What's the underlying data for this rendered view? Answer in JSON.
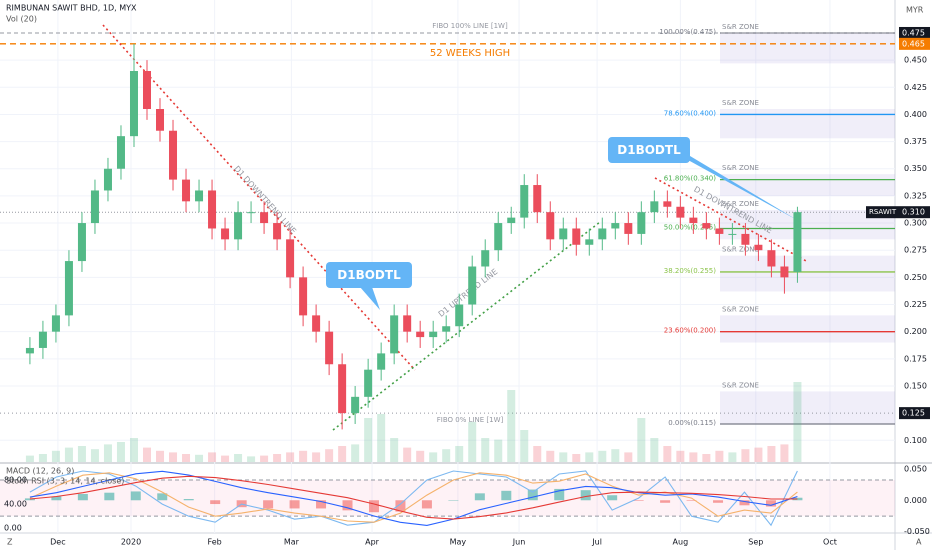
{
  "ui": {
    "scale_left": "Z",
    "scale_right": "A"
  },
  "chart_data": {
    "type": "candlestick",
    "title": "RIMBUNAN SAWIT BHD, 1D, MYX",
    "currency": "MYR",
    "volume_label": "Vol (20)",
    "colors": {
      "up": "#53b987",
      "down": "#eb4d5c"
    },
    "grid": true,
    "xlim": [
      -2.3,
      66.5
    ],
    "ylim": [
      0.08,
      0.498
    ],
    "xticks": [
      {
        "value": 2.15,
        "label": "Dec"
      },
      {
        "value": 7.77,
        "label": "2020"
      },
      {
        "value": 14.2,
        "label": "Feb"
      },
      {
        "value": 20.1,
        "label": "Mar"
      },
      {
        "value": 26.3,
        "label": "Apr"
      },
      {
        "value": 32.9,
        "label": "May"
      },
      {
        "value": 37.6,
        "label": "Jun"
      },
      {
        "value": 43.6,
        "label": "Jul"
      },
      {
        "value": 50,
        "label": "Aug"
      },
      {
        "value": 55.8,
        "label": "Sep"
      },
      {
        "value": 61.5,
        "label": "Oct"
      }
    ],
    "yticks": [
      {
        "value": 0.1,
        "label": "0.100"
      },
      {
        "value": 0.15,
        "label": "0.150"
      },
      {
        "value": 0.175,
        "label": "0.175"
      },
      {
        "value": 0.2,
        "label": "0.200"
      },
      {
        "value": 0.225,
        "label": "0.225"
      },
      {
        "value": 0.25,
        "label": "0.250"
      },
      {
        "value": 0.275,
        "label": "0.275"
      },
      {
        "value": 0.3,
        "label": "0.300"
      },
      {
        "value": 0.325,
        "label": "0.325"
      },
      {
        "value": 0.35,
        "label": "0.350"
      },
      {
        "value": 0.375,
        "label": "0.375"
      },
      {
        "value": 0.4,
        "label": "0.400"
      },
      {
        "value": 0.425,
        "label": "0.425"
      },
      {
        "value": 0.45,
        "label": "0.450"
      }
    ],
    "open": [
      0.18,
      0.185,
      0.2,
      0.215,
      0.265,
      0.3,
      0.33,
      0.35,
      0.38,
      0.44,
      0.405,
      0.385,
      0.34,
      0.32,
      0.33,
      0.295,
      0.285,
      0.31,
      0.31,
      0.3,
      0.285,
      0.25,
      0.215,
      0.2,
      0.17,
      0.125,
      0.14,
      0.165,
      0.18,
      0.215,
      0.2,
      0.195,
      0.2,
      0.205,
      0.225,
      0.26,
      0.275,
      0.3,
      0.305,
      0.335,
      0.31,
      0.285,
      0.295,
      0.28,
      0.285,
      0.295,
      0.3,
      0.29,
      0.31,
      0.32,
      0.315,
      0.305,
      0.3,
      0.295,
      0.29,
      0.29,
      0.28,
      0.275,
      0.26,
      0.255
    ],
    "high": [
      0.195,
      0.21,
      0.225,
      0.275,
      0.31,
      0.34,
      0.36,
      0.39,
      0.465,
      0.45,
      0.415,
      0.395,
      0.35,
      0.34,
      0.34,
      0.305,
      0.32,
      0.32,
      0.32,
      0.31,
      0.295,
      0.26,
      0.225,
      0.21,
      0.18,
      0.15,
      0.175,
      0.19,
      0.225,
      0.225,
      0.21,
      0.21,
      0.215,
      0.235,
      0.27,
      0.285,
      0.31,
      0.315,
      0.345,
      0.345,
      0.32,
      0.305,
      0.305,
      0.295,
      0.305,
      0.31,
      0.31,
      0.32,
      0.33,
      0.33,
      0.325,
      0.315,
      0.31,
      0.305,
      0.3,
      0.3,
      0.29,
      0.285,
      0.27,
      0.315
    ],
    "low": [
      0.17,
      0.175,
      0.19,
      0.205,
      0.255,
      0.29,
      0.32,
      0.34,
      0.37,
      0.395,
      0.375,
      0.33,
      0.31,
      0.31,
      0.285,
      0.275,
      0.275,
      0.3,
      0.29,
      0.275,
      0.24,
      0.205,
      0.19,
      0.16,
      0.11,
      0.115,
      0.13,
      0.155,
      0.17,
      0.19,
      0.185,
      0.185,
      0.19,
      0.195,
      0.215,
      0.25,
      0.265,
      0.29,
      0.295,
      0.3,
      0.275,
      0.275,
      0.27,
      0.27,
      0.275,
      0.285,
      0.28,
      0.28,
      0.3,
      0.305,
      0.295,
      0.29,
      0.285,
      0.28,
      0.28,
      0.27,
      0.265,
      0.25,
      0.235,
      0.245
    ],
    "close": [
      0.185,
      0.2,
      0.215,
      0.265,
      0.3,
      0.33,
      0.35,
      0.38,
      0.44,
      0.405,
      0.385,
      0.34,
      0.32,
      0.33,
      0.295,
      0.285,
      0.31,
      0.31,
      0.3,
      0.285,
      0.25,
      0.215,
      0.2,
      0.17,
      0.125,
      0.14,
      0.165,
      0.18,
      0.215,
      0.2,
      0.195,
      0.2,
      0.205,
      0.225,
      0.26,
      0.275,
      0.3,
      0.305,
      0.335,
      0.31,
      0.285,
      0.295,
      0.28,
      0.285,
      0.295,
      0.3,
      0.29,
      0.31,
      0.32,
      0.315,
      0.305,
      0.3,
      0.295,
      0.29,
      0.29,
      0.28,
      0.275,
      0.26,
      0.25,
      0.31
    ],
    "volume": [
      8,
      10,
      14,
      18,
      20,
      16,
      22,
      25,
      30,
      18,
      14,
      12,
      10,
      9,
      12,
      8,
      10,
      7,
      8,
      10,
      12,
      14,
      12,
      16,
      20,
      22,
      55,
      60,
      30,
      18,
      14,
      12,
      16,
      20,
      50,
      30,
      28,
      90,
      40,
      20,
      14,
      12,
      10,
      12,
      14,
      16,
      12,
      55,
      30,
      20,
      14,
      12,
      10,
      14,
      12,
      16,
      18,
      20,
      22,
      100
    ],
    "levels": [
      {
        "name": "FIBO 100% LINE [1W]",
        "value": 0.475,
        "label": "0.475",
        "color": "#9598a1"
      },
      {
        "name": "52 WEEKS HIGH",
        "value": 0.465,
        "label": "0.465",
        "color": "#f57c00"
      },
      {
        "name": "FIBO 0% LINE [1W]",
        "value": 0.125,
        "label": "0.125",
        "color": "#9598a1"
      }
    ],
    "last_price": {
      "symbol": "RSAWIT",
      "value": 0.31,
      "label": "0.310"
    },
    "fib": [
      {
        "label": "100.00%(0.475)",
        "value": 0.475,
        "color": "#787b86"
      },
      {
        "label": "78.60%(0.400)",
        "value": 0.4,
        "color": "#2196f3"
      },
      {
        "label": "61.80%(0.340)",
        "value": 0.34,
        "color": "#4caf50"
      },
      {
        "label": "50.00%(0.295)",
        "value": 0.295,
        "color": "#4caf50"
      },
      {
        "label": "38.20%(0.255)",
        "value": 0.255,
        "color": "#8bc34a"
      },
      {
        "label": "23.60%(0.200)",
        "value": 0.2,
        "color": "#e53935"
      },
      {
        "label": "0.00%(0.115)",
        "value": 0.115,
        "color": "#787b86"
      }
    ],
    "zones": [
      {
        "label": "S&R ZONE",
        "range": [
          0.447,
          0.475
        ]
      },
      {
        "label": "S&R ZONE",
        "range": [
          0.378,
          0.405
        ]
      },
      {
        "label": "S&R ZONE",
        "range": [
          0.325,
          0.345
        ]
      },
      {
        "label": "S&R ZONE",
        "range": [
          0.285,
          0.312
        ]
      },
      {
        "label": "S&R ZONE",
        "range": [
          0.237,
          0.27
        ]
      },
      {
        "label": "S&R ZONE",
        "range": [
          0.19,
          0.215
        ]
      },
      {
        "label": "S&R ZONE",
        "range": [
          0.115,
          0.145
        ]
      }
    ],
    "annotations": [
      "D1 DOWNTREND LINE",
      "D1 UPTREND LINE",
      "D1 DOWNTREND LINE",
      "D1BODTL",
      "D1BODTL"
    ],
    "indicators": {
      "macd": {
        "label": "MACD (12, 26, 9)",
        "ylim": [
          -0.052,
          0.056
        ],
        "yticks": [
          {
            "value": 0.05,
            "label": "0.050"
          },
          {
            "value": 0,
            "label": "0.000"
          },
          {
            "value": -0.05,
            "label": "-0.050"
          }
        ],
        "macd": [
          0.005,
          0.012,
          0.022,
          0.032,
          0.042,
          0.046,
          0.04,
          0.03,
          0.02,
          0.012,
          0.005,
          -0.002,
          -0.012,
          -0.025,
          -0.035,
          -0.04,
          -0.03,
          -0.015,
          -0.005,
          0.005,
          0.015,
          0.022,
          0.02,
          0.012,
          0.008,
          0.01,
          0.005,
          -0.002,
          -0.008,
          0.006
        ],
        "signal": [
          0.002,
          0.006,
          0.012,
          0.02,
          0.028,
          0.035,
          0.038,
          0.036,
          0.031,
          0.025,
          0.018,
          0.011,
          0.004,
          -0.006,
          -0.017,
          -0.027,
          -0.03,
          -0.026,
          -0.02,
          -0.012,
          -0.003,
          0.006,
          0.012,
          0.013,
          0.012,
          0.011,
          0.009,
          0.006,
          0.002,
          0.002
        ],
        "histogram": [
          0.003,
          0.006,
          0.01,
          0.012,
          0.014,
          0.011,
          0.002,
          -0.006,
          -0.011,
          -0.013,
          -0.013,
          -0.013,
          -0.016,
          -0.019,
          -0.018,
          -0.013,
          0.0,
          0.011,
          0.015,
          0.017,
          0.018,
          0.016,
          0.008,
          -0.001,
          -0.004,
          -0.001,
          -0.004,
          -0.008,
          -0.01,
          0.004
        ]
      },
      "stoch_rsi": {
        "label": "Stoch RSI (3, 3, 14, 14, close)",
        "ylim": [
          -8,
          105
        ],
        "yticks": [
          {
            "value": 80,
            "label": "80.00"
          },
          {
            "value": 40,
            "label": "40.00"
          },
          {
            "value": 0,
            "label": "0.00"
          }
        ],
        "bands": [
          80,
          20
        ],
        "k": [
          60,
          85,
          95,
          90,
          70,
          40,
          20,
          10,
          40,
          30,
          15,
          20,
          5,
          10,
          40,
          80,
          95,
          90,
          85,
          60,
          90,
          95,
          30,
          50,
          85,
          20,
          10,
          60,
          5,
          95
        ],
        "d": [
          50,
          70,
          88,
          92,
          82,
          60,
          35,
          20,
          25,
          32,
          25,
          20,
          12,
          10,
          25,
          55,
          80,
          92,
          88,
          75,
          78,
          90,
          70,
          55,
          60,
          50,
          20,
          30,
          25,
          60
        ]
      }
    }
  }
}
